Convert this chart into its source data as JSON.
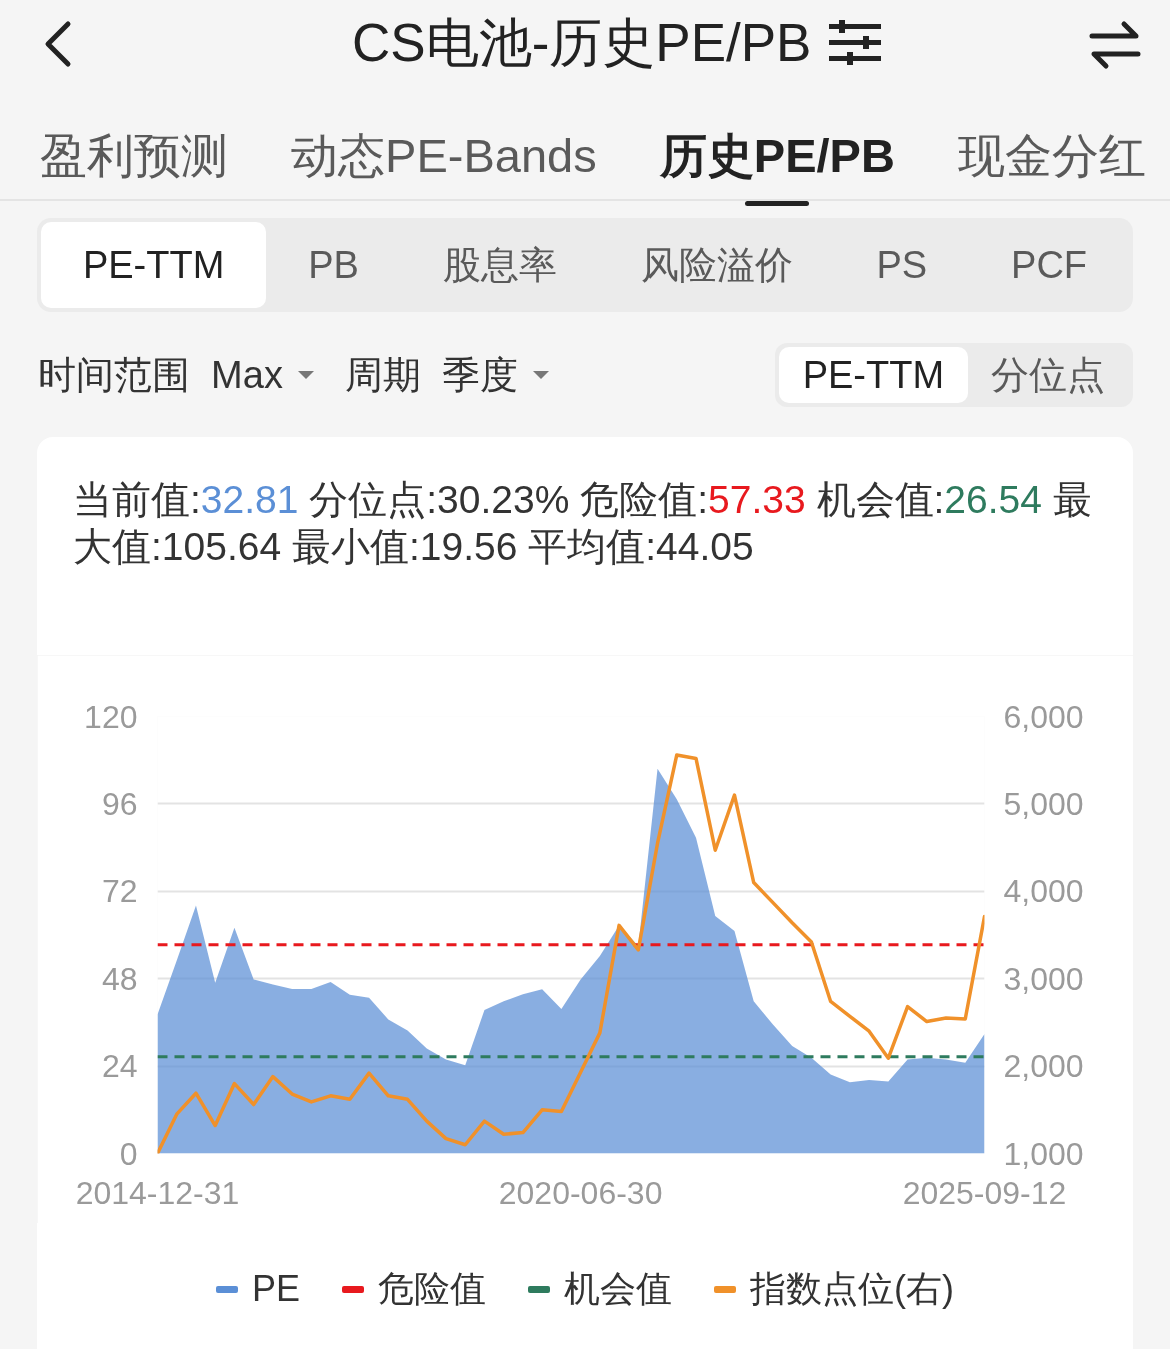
{
  "chart_data": {
    "type": "area",
    "title": "CS电池-历史PE/PB",
    "subtitle": "当前值:32.81 分位点:30.23% 危险值:57.33 机会值:26.54 最大值:105.64 最小值:19.56 平均值:44.05",
    "annotations": [
      "盈利预测",
      "动态PE-Bands",
      "历史PE/PB",
      "现金分红",
      "PE-TTM",
      "PB",
      "股息率",
      "风险溢价",
      "PS",
      "PCF",
      "时间范围 Max",
      "周期 季度",
      "PE-TTM",
      "分位点"
    ],
    "categories": [
      "2014-12-31",
      null,
      null,
      null,
      null,
      null,
      null,
      null,
      null,
      null,
      null,
      null,
      null,
      null,
      null,
      null,
      null,
      null,
      null,
      null,
      null,
      null,
      "2020-06-30",
      null,
      null,
      null,
      null,
      null,
      null,
      null,
      null,
      null,
      null,
      null,
      null,
      null,
      null,
      null,
      null,
      null,
      null,
      null,
      null,
      "2025-09-12"
    ],
    "series": [
      {
        "name": "PE",
        "color": "#5b8fd6",
        "values": [
          38.2,
          53,
          68.1,
          46.9,
          62.0,
          47.8,
          46.4,
          45.2,
          45.2,
          47.1,
          43.6,
          42.8,
          36.8,
          33.8,
          28.8,
          25.8,
          24.2,
          39.4,
          41.8,
          43.7,
          45.1,
          39.7,
          47.8,
          54.2,
          62.6,
          57,
          105.64,
          97.3,
          86.7,
          65.2,
          61.1,
          41.8,
          35.4,
          29.5,
          26.3,
          21.7,
          19.56,
          20.2,
          19.8,
          25.8,
          26.3,
          25.8,
          24.9,
          32.81
        ]
      },
      {
        "name": "指数点位(右)",
        "type": "line",
        "axis": "y2",
        "color": "#f0912a",
        "values": [
          1000,
          1450,
          1690,
          1320,
          1800,
          1560,
          1880,
          1680,
          1590,
          1660,
          1620,
          1920,
          1660,
          1620,
          1370,
          1170,
          1100,
          1370,
          1220,
          1240,
          1500,
          1480,
          1930,
          2380,
          3610,
          3330,
          4550,
          5560,
          5520,
          4470,
          5100,
          4100,
          3870,
          3640,
          3420,
          2740,
          2570,
          2400,
          2090,
          2680,
          2510,
          2550,
          2540,
          3710
        ]
      }
    ],
    "ylim": [
      0,
      120
    ],
    "yticks": [
      0,
      24,
      48,
      72,
      96,
      120
    ],
    "y2lim": [
      1000,
      6000
    ],
    "y2ticks": [
      {
        "value": 1000,
        "label": "1,000"
      },
      {
        "value": 2000,
        "label": "2,000"
      },
      {
        "value": 3000,
        "label": "3,000"
      },
      {
        "value": 4000,
        "label": "4,000"
      },
      {
        "value": 5000,
        "label": "5,000"
      },
      {
        "value": 6000,
        "label": "6,000"
      }
    ],
    "ref_lines": [
      {
        "axis": "y",
        "value": 57.33,
        "label": "危险值",
        "color": "#e8191e",
        "line_style": "dashed"
      },
      {
        "axis": "y",
        "value": 26.54,
        "label": "机会值",
        "color": "#2e7b5e",
        "line_style": "dashed"
      }
    ],
    "grid": "y",
    "legend": "bottom"
  }
}
